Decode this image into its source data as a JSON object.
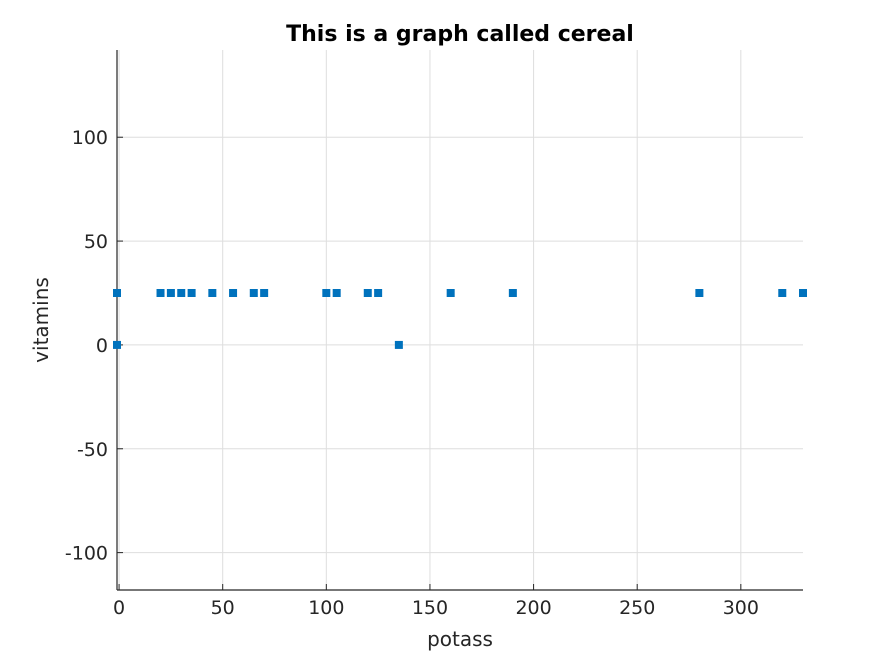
{
  "chart_data": {
    "type": "scatter",
    "title": "This is a graph called cereal",
    "xlabel": "potass",
    "ylabel": "vitamins",
    "xlim": [
      -1,
      330
    ],
    "ylim": [
      -118,
      142
    ],
    "xticks": [
      0,
      50,
      100,
      150,
      200,
      250,
      300
    ],
    "yticks": [
      -100,
      -50,
      0,
      50,
      100
    ],
    "grid": true,
    "marker": "square",
    "marker_color": "#0072bd",
    "series": [
      {
        "x": [
          -1,
          -1,
          20,
          25,
          30,
          35,
          45,
          55,
          65,
          70,
          100,
          105,
          120,
          125,
          135,
          160,
          190,
          280,
          320,
          330
        ],
        "y": [
          25,
          0,
          25,
          25,
          25,
          25,
          25,
          25,
          25,
          25,
          25,
          25,
          25,
          25,
          0,
          25,
          25,
          25,
          25,
          25
        ]
      }
    ]
  }
}
